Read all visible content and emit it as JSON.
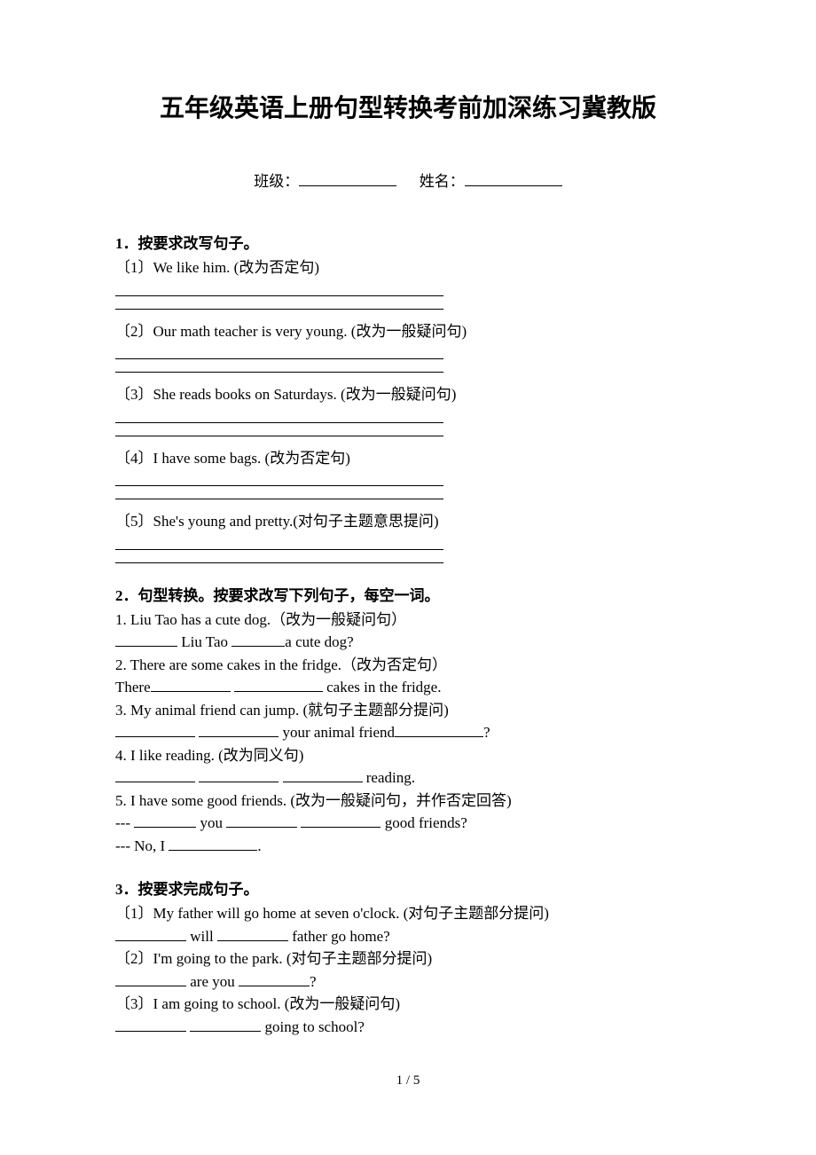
{
  "title": "五年级英语上册句型转换考前加深练习冀教版",
  "meta": {
    "class_label": "班级：",
    "name_label": "姓名："
  },
  "s1": {
    "head": "1．按要求改写句子。",
    "q1": "〔1〕We like him. (改为否定句)",
    "q2": "〔2〕Our math teacher is very young. (改为一般疑问句)",
    "q3": "〔3〕She reads books on Saturdays. (改为一般疑问句)",
    "q4": "〔4〕I have some bags. (改为否定句)",
    "q5": "〔5〕She's young and pretty.(对句子主题意思提问)"
  },
  "s2": {
    "head": "2．句型转换。按要求改写下列句子，每空一词。",
    "q1": "1. Liu Tao has a cute dog.（改为一般疑问句）",
    "a1_mid": " Liu Tao ",
    "a1_end": "a cute dog?",
    "q2": "2. There are some cakes in the fridge.（改为否定句）",
    "a2_pre": "There",
    "a2_end": " cakes in the fridge.",
    "q3": "3. My animal friend can jump. (就句子主题部分提问)",
    "a3_mid": " your animal friend",
    "a3_end": "?",
    "q4": "4. I like reading. (改为同义句)",
    "a4_end": " reading.",
    "q5": "5. I have some good friends. (改为一般疑问句，并作否定回答)",
    "a5a_pre": "--- ",
    "a5a_mid1": " you ",
    "a5a_end": " good friends?",
    "a5b_pre": "--- No, I ",
    "a5b_end": "."
  },
  "s3": {
    "head": "3．按要求完成句子。",
    "q1": "〔1〕My father will go home at seven o'clock. (对句子主题部分提问)",
    "a1_mid": " will ",
    "a1_end": " father go home?",
    "q2": "〔2〕I'm going to the park. (对句子主题部分提问)",
    "a2_mid": " are you ",
    "a2_end": "?",
    "q3": "〔3〕I am going to school. (改为一般疑问句)",
    "a3_end": " going to school?"
  },
  "page_num": "1 / 5"
}
